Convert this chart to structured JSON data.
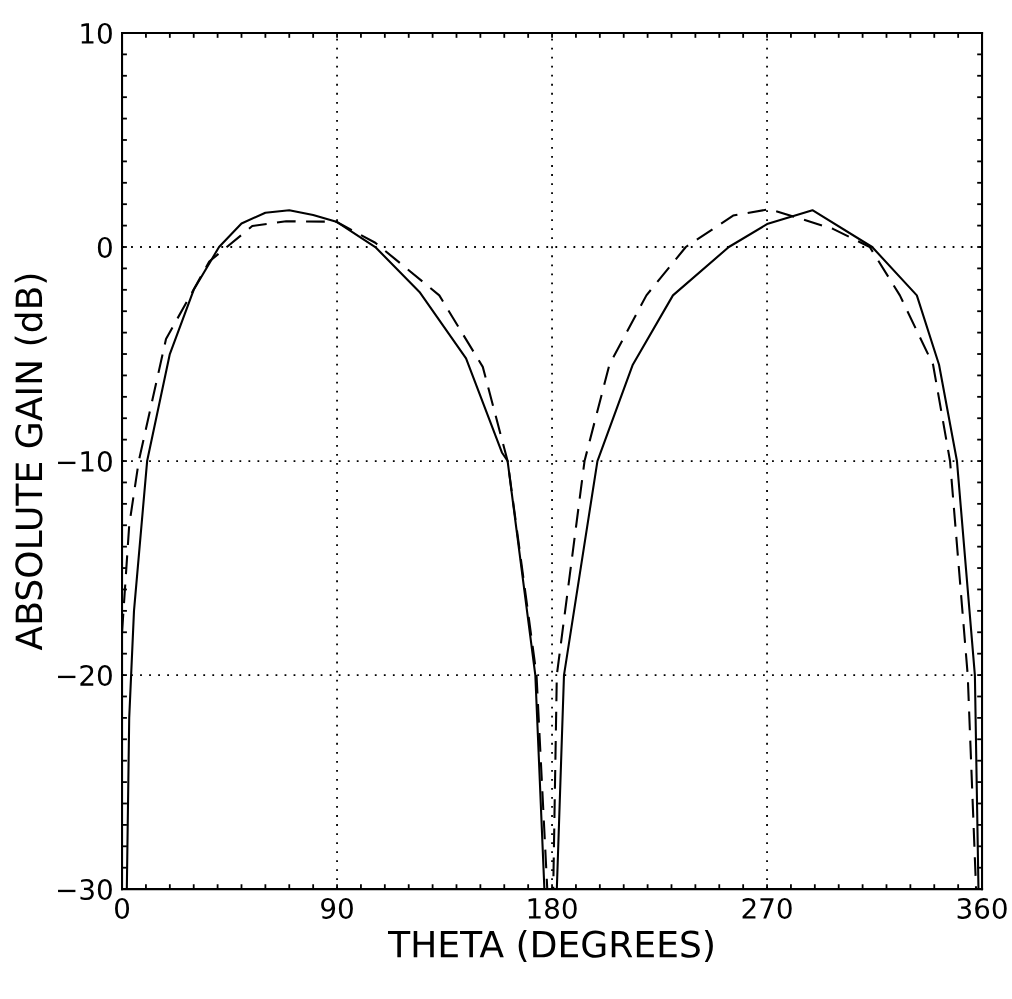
{
  "chart_data": {
    "type": "line",
    "xlabel": "THETA (DEGREES)",
    "ylabel": "ABSOLUTE GAIN (dB)",
    "xlim": [
      0,
      360
    ],
    "ylim": [
      -30,
      10
    ],
    "xticks": [
      0,
      {
        "value": 10,
        "label": null
      },
      {
        "value": 20,
        "label": null
      },
      {
        "value": 30,
        "label": null
      },
      {
        "value": 40,
        "label": null
      },
      {
        "value": 50,
        "label": null
      },
      {
        "value": 60,
        "label": null
      },
      {
        "value": 70,
        "label": null
      },
      {
        "value": 80,
        "label": null
      },
      90,
      {
        "value": 100,
        "label": null
      },
      {
        "value": 110,
        "label": null
      },
      {
        "value": 120,
        "label": null
      },
      {
        "value": 130,
        "label": null
      },
      {
        "value": 140,
        "label": null
      },
      {
        "value": 150,
        "label": null
      },
      {
        "value": 160,
        "label": null
      },
      {
        "value": 170,
        "label": null
      },
      180,
      {
        "value": 190,
        "label": null
      },
      {
        "value": 200,
        "label": null
      },
      {
        "value": 210,
        "label": null
      },
      {
        "value": 220,
        "label": null
      },
      {
        "value": 230,
        "label": null
      },
      {
        "value": 240,
        "label": null
      },
      {
        "value": 250,
        "label": null
      },
      {
        "value": 260,
        "label": null
      },
      270,
      {
        "value": 280,
        "label": null
      },
      {
        "value": 290,
        "label": null
      },
      {
        "value": 300,
        "label": null
      },
      {
        "value": 310,
        "label": null
      },
      {
        "value": 320,
        "label": null
      },
      {
        "value": 330,
        "label": null
      },
      {
        "value": 340,
        "label": null
      },
      {
        "value": 350,
        "label": null
      },
      360
    ],
    "yticks": [
      {
        "value": -30,
        "label": "−30"
      },
      {
        "value": -29,
        "label": null
      },
      {
        "value": -28,
        "label": null
      },
      {
        "value": -27,
        "label": null
      },
      {
        "value": -26,
        "label": null
      },
      {
        "value": -25,
        "label": null
      },
      {
        "value": -24,
        "label": null
      },
      {
        "value": -23,
        "label": null
      },
      {
        "value": -22,
        "label": null
      },
      {
        "value": -21,
        "label": null
      },
      {
        "value": -20,
        "label": "−20"
      },
      {
        "value": -19,
        "label": null
      },
      {
        "value": -18,
        "label": null
      },
      {
        "value": -17,
        "label": null
      },
      {
        "value": -16,
        "label": null
      },
      {
        "value": -15,
        "label": null
      },
      {
        "value": -14,
        "label": null
      },
      {
        "value": -13,
        "label": null
      },
      {
        "value": -12,
        "label": null
      },
      {
        "value": -11,
        "label": null
      },
      {
        "value": -10,
        "label": "−10"
      },
      {
        "value": -9,
        "label": null
      },
      {
        "value": -8,
        "label": null
      },
      {
        "value": -7,
        "label": null
      },
      {
        "value": -6,
        "label": null
      },
      {
        "value": -5,
        "label": null
      },
      {
        "value": -4,
        "label": null
      },
      {
        "value": -3,
        "label": null
      },
      {
        "value": -2,
        "label": null
      },
      {
        "value": -1,
        "label": null
      },
      0,
      {
        "value": 1,
        "label": null
      },
      {
        "value": 2,
        "label": null
      },
      {
        "value": 3,
        "label": null
      },
      {
        "value": 4,
        "label": null
      },
      {
        "value": 5,
        "label": null
      },
      {
        "value": 6,
        "label": null
      },
      {
        "value": 7,
        "label": null
      },
      {
        "value": 8,
        "label": null
      },
      {
        "value": 9,
        "label": null
      },
      10
    ],
    "grid": true,
    "series": [
      {
        "color": "#000000",
        "line_style": "solid",
        "x": [
          2,
          3,
          5,
          10.5,
          20,
          30,
          40.6,
          50,
          60,
          70,
          80,
          89.7,
          106,
          124.5,
          144,
          159,
          161.4,
          173,
          176.8,
          null,
          182,
          185,
          199,
          213.8,
          230.6,
          254,
          270,
          289,
          314,
          332.7,
          342,
          349.5,
          357,
          358.5
        ],
        "values": [
          -30,
          -22,
          -17,
          -10,
          -5,
          -2,
          0,
          1.1,
          1.6,
          1.72,
          1.5,
          1.18,
          0,
          -2.1,
          -5.2,
          -9.6,
          -10,
          -20,
          -30,
          null,
          -30,
          -20,
          -10,
          -5.5,
          -2.26,
          0,
          1.07,
          1.72,
          0,
          -2.26,
          -5.5,
          -10,
          -20,
          -30
        ]
      },
      {
        "color": "#000000",
        "line_style": "dashed",
        "x": [
          0,
          3,
          7,
          18.4,
          36.5,
          54.5,
          68.7,
          89.7,
          106,
          132.8,
          151,
          161.4,
          173.5,
          178,
          180.5,
          182,
          193.6,
          204,
          219.5,
          236,
          255.8,
          271,
          297.6,
          313,
          325.6,
          339.5,
          346.6,
          354,
          357.5
        ],
        "values": [
          -18,
          -13,
          -10,
          -4.3,
          -0.68,
          0.98,
          1.2,
          1.18,
          0.2,
          -2.26,
          -5.6,
          -10,
          -20,
          -30,
          -30,
          -20,
          -10,
          -5.5,
          -2.26,
          0,
          1.47,
          1.77,
          0.85,
          0,
          -2.26,
          -5.5,
          -10,
          -20,
          -30
        ]
      }
    ]
  }
}
